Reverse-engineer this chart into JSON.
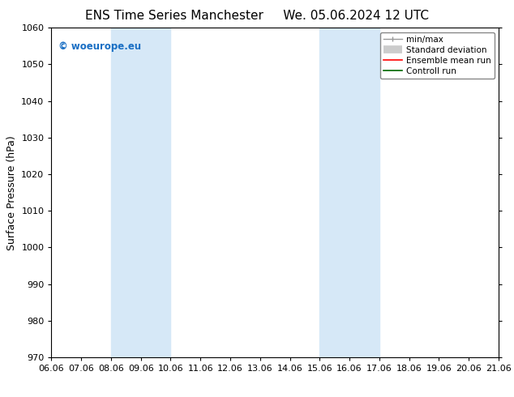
{
  "title_left": "ENS Time Series Manchester",
  "title_right": "We. 05.06.2024 12 UTC",
  "ylabel": "Surface Pressure (hPa)",
  "ylim": [
    970,
    1060
  ],
  "yticks": [
    970,
    980,
    990,
    1000,
    1010,
    1020,
    1030,
    1040,
    1050,
    1060
  ],
  "x_labels": [
    "06.06",
    "07.06",
    "08.06",
    "09.06",
    "10.06",
    "11.06",
    "12.06",
    "13.06",
    "14.06",
    "15.06",
    "16.06",
    "17.06",
    "18.06",
    "19.06",
    "20.06",
    "21.06"
  ],
  "x_values": [
    0,
    1,
    2,
    3,
    4,
    5,
    6,
    7,
    8,
    9,
    10,
    11,
    12,
    13,
    14,
    15
  ],
  "shaded_regions": [
    {
      "xmin": 2,
      "xmax": 4,
      "color": "#d6e8f7"
    },
    {
      "xmin": 9,
      "xmax": 11,
      "color": "#d6e8f7"
    }
  ],
  "watermark_text": "© woeurope.eu",
  "watermark_color": "#1a6fc4",
  "background_color": "#ffffff",
  "title_fontsize": 11,
  "axis_fontsize": 9,
  "tick_fontsize": 8,
  "legend_fontsize": 7.5,
  "figsize": [
    6.34,
    4.9
  ],
  "dpi": 100
}
